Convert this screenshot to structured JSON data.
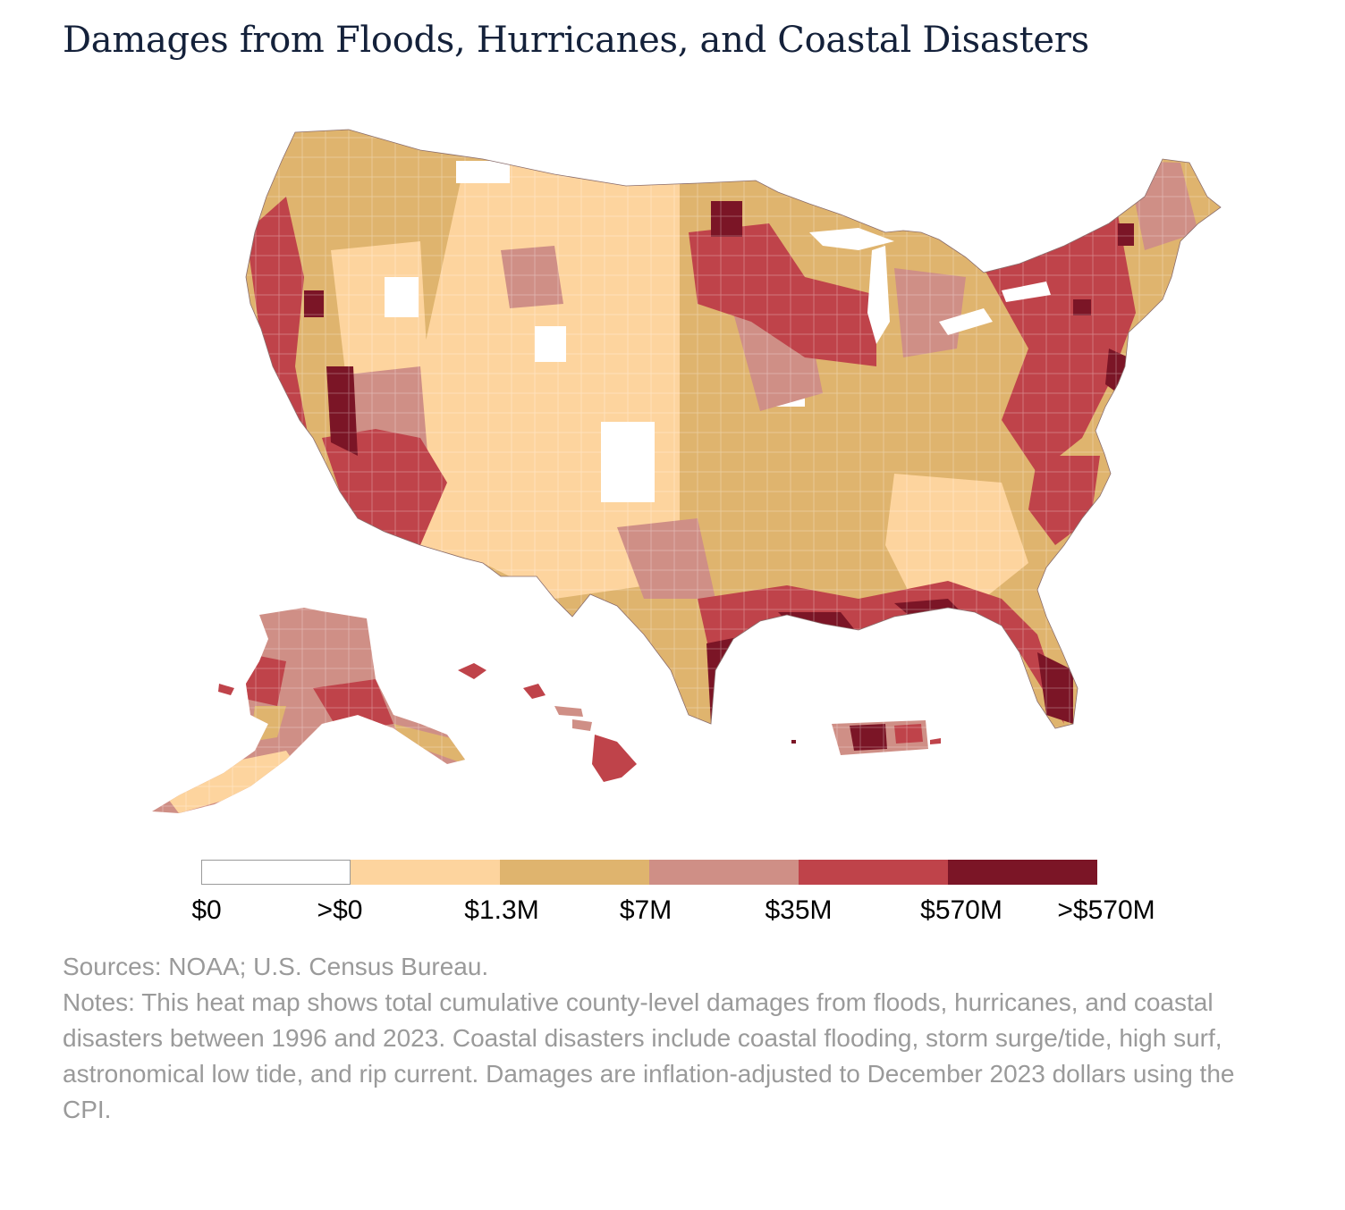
{
  "title": "Damages from Floods, Hurricanes, and Coastal Disasters",
  "map": {
    "regions": [
      "Contiguous United States",
      "Alaska",
      "Hawaii",
      "Puerto Rico"
    ],
    "colors": {
      "zero": "#ffffff",
      "low": "#fdd49e",
      "mid_low": "#dfb46e",
      "mid": "#cf8f86",
      "high": "#bf434a",
      "very_high": "#7b1526"
    }
  },
  "legend": {
    "labels": [
      "$0",
      ">$0",
      "$1.3M",
      "$7M",
      "$35M",
      "$570M",
      ">$570M"
    ],
    "swatches": [
      "#ffffff",
      "#fdd49e",
      "#dfb46e",
      "#cf8f86",
      "#bf434a",
      "#7b1526"
    ]
  },
  "sources": "Sources: NOAA; U.S. Census Bureau.",
  "notes": "Notes: This heat map shows total cumulative county-level damages from floods, hurricanes, and coastal disasters between 1996 and 2023. Coastal disasters include coastal flooding, storm surge/tide, high surf, astronomical low tide, and rip current. Damages are inflation-adjusted to December 2023 dollars using the CPI."
}
